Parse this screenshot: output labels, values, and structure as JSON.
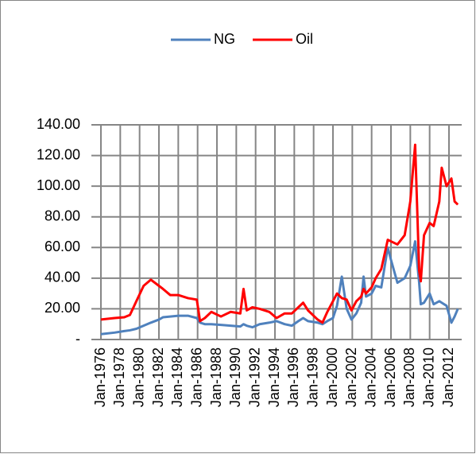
{
  "chart_data": {
    "type": "line",
    "x": [
      "1976-01",
      "1977-06",
      "1978-06",
      "1979-01",
      "1979-09",
      "1980-06",
      "1981-03",
      "1982-01",
      "1982-06",
      "1983-03",
      "1984-01",
      "1985-01",
      "1985-12",
      "1986-04",
      "1986-10",
      "1987-06",
      "1988-06",
      "1989-06",
      "1990-06",
      "1990-10",
      "1991-02",
      "1991-09",
      "1992-06",
      "1993-06",
      "1994-03",
      "1995-01",
      "1995-10",
      "1996-06",
      "1996-12",
      "1997-06",
      "1998-06",
      "1998-12",
      "1999-06",
      "2000-01",
      "2000-06",
      "2000-12",
      "2001-06",
      "2001-12",
      "2002-06",
      "2002-12",
      "2003-03",
      "2003-06",
      "2004-01",
      "2004-06",
      "2005-01",
      "2005-09",
      "2006-01",
      "2006-09",
      "2007-06",
      "2008-01",
      "2008-07",
      "2008-12",
      "2009-02",
      "2009-06",
      "2010-01",
      "2010-06",
      "2011-01",
      "2011-04",
      "2011-10",
      "2012-04",
      "2012-08",
      "2012-12"
    ],
    "series": [
      {
        "name": "NG",
        "color": "#4f81bd",
        "values": [
          3.5,
          4.5,
          5.5,
          6,
          7,
          9,
          11,
          13,
          14.5,
          15,
          15.5,
          15.5,
          14,
          11,
          10,
          10,
          9.5,
          9,
          8.5,
          10,
          9,
          8,
          10,
          11,
          12,
          10,
          9,
          12,
          14,
          12,
          11,
          10,
          12,
          14,
          22,
          41,
          20,
          13,
          17,
          24,
          41,
          28,
          30,
          35,
          34,
          60,
          52,
          37,
          40,
          48,
          64,
          37,
          23,
          24,
          30,
          23,
          25,
          24,
          22,
          11,
          15,
          20
        ]
      },
      {
        "name": "Oil",
        "color": "#ff0000",
        "values": [
          13,
          14,
          14.5,
          16,
          25,
          35,
          39,
          35,
          33,
          29,
          29,
          27,
          26,
          12,
          14,
          18,
          15,
          18,
          17,
          33,
          19,
          21,
          20,
          18,
          14,
          17,
          17,
          21,
          24,
          19,
          13,
          11,
          18,
          25,
          30,
          27,
          26,
          19,
          25,
          28,
          33,
          30,
          34,
          40,
          46,
          65,
          64,
          62,
          68,
          90,
          127,
          45,
          38,
          68,
          76,
          74,
          90,
          112,
          100,
          105,
          90,
          88
        ]
      }
    ],
    "ylim": [
      0,
      140
    ],
    "yticks": [
      {
        "value": 0,
        "label": "-"
      },
      {
        "value": 20,
        "label": "20.00"
      },
      {
        "value": 40,
        "label": "40.00"
      },
      {
        "value": 60,
        "label": "60.00"
      },
      {
        "value": 80,
        "label": "80.00"
      },
      {
        "value": 100,
        "label": "100.00"
      },
      {
        "value": 120,
        "label": "120.00"
      },
      {
        "value": 140,
        "label": "140.00"
      }
    ],
    "xticks": [
      {
        "value": "1976-01",
        "label": "Jan-1976"
      },
      {
        "value": "1978-01",
        "label": "Jan-1978"
      },
      {
        "value": "1980-01",
        "label": "Jan-1980"
      },
      {
        "value": "1982-01",
        "label": "Jan-1982"
      },
      {
        "value": "1984-01",
        "label": "Jan-1984"
      },
      {
        "value": "1986-01",
        "label": "Jan-1986"
      },
      {
        "value": "1988-01",
        "label": "Jan-1988"
      },
      {
        "value": "1990-01",
        "label": "Jan-1990"
      },
      {
        "value": "1992-01",
        "label": "Jan-1992"
      },
      {
        "value": "1994-01",
        "label": "Jan-1994"
      },
      {
        "value": "1996-01",
        "label": "Jan-1996"
      },
      {
        "value": "1998-01",
        "label": "Jan-1998"
      },
      {
        "value": "2000-01",
        "label": "Jan-2000"
      },
      {
        "value": "2002-01",
        "label": "Jan-2002"
      },
      {
        "value": "2004-01",
        "label": "Jan-2004"
      },
      {
        "value": "2006-01",
        "label": "Jan-2006"
      },
      {
        "value": "2008-01",
        "label": "Jan-2008"
      },
      {
        "value": "2010-01",
        "label": "Jan-2010"
      },
      {
        "value": "2012-01",
        "label": "Jan-2012"
      }
    ],
    "grid": true,
    "legend": "top"
  }
}
